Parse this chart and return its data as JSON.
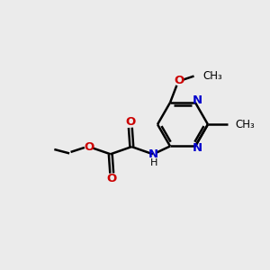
{
  "bg_color": "#ebebeb",
  "bond_color": "#000000",
  "nitrogen_color": "#0000cc",
  "oxygen_color": "#cc0000",
  "line_width": 1.8,
  "figsize": [
    3.0,
    3.0
  ],
  "dpi": 100,
  "xlim": [
    0,
    10
  ],
  "ylim": [
    0,
    10
  ]
}
